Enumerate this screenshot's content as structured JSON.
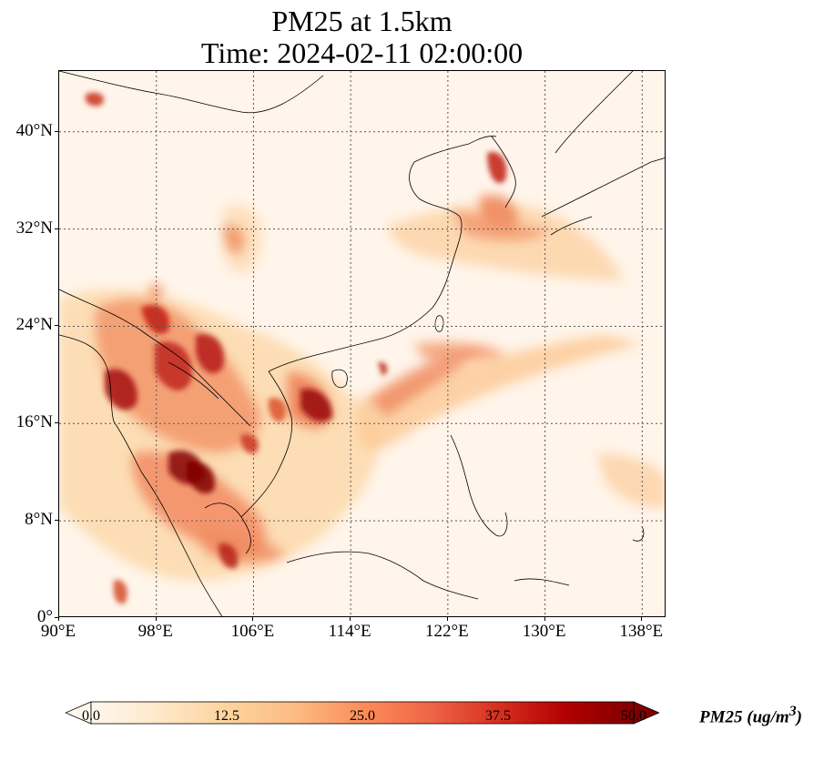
{
  "title": {
    "line1": "PM25 at 1.5km",
    "line2": "Time: 2024-02-11 02:00:00"
  },
  "map": {
    "projection": "PlateCarree",
    "lon_range": [
      90,
      140
    ],
    "lat_range": [
      0,
      45
    ],
    "gridlines": "dotted",
    "variable": "PM25",
    "colormap": "OrRd",
    "longitude_ticks": [
      "90°E",
      "98°E",
      "106°E",
      "114°E",
      "122°E",
      "130°E",
      "138°E"
    ],
    "latitude_ticks": [
      "0°",
      "8°N",
      "16°N",
      "24°N",
      "32°N",
      "40°N"
    ]
  },
  "colorbar": {
    "ticks": [
      "0.0",
      "12.5",
      "25.0",
      "37.5",
      "50.0"
    ],
    "range": [
      0,
      50
    ],
    "extend": "both",
    "label": "PM25 (ug/m",
    "label_superscript": "3",
    "label_close": ")",
    "colors": [
      "#fff7ec",
      "#fee8c8",
      "#fdd49e",
      "#fdbb84",
      "#fc8d59",
      "#ef6548",
      "#d7301f",
      "#b30000",
      "#7f0000"
    ]
  }
}
